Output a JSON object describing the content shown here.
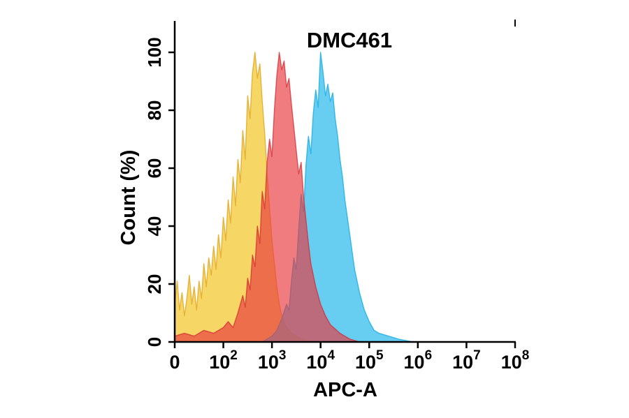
{
  "title": "DMC461",
  "axes": {
    "x_label": "APC-A",
    "y_label": "Count (%)",
    "x_ticks": [
      {
        "t": "0"
      },
      {
        "t": "10",
        "e": "2"
      },
      {
        "t": "10",
        "e": "3"
      },
      {
        "t": "10",
        "e": "4"
      },
      {
        "t": "10",
        "e": "5"
      },
      {
        "t": "10",
        "e": "6"
      },
      {
        "t": "10",
        "e": "7"
      },
      {
        "t": "10",
        "e": "8"
      }
    ],
    "y_ticks": [
      0,
      20,
      40,
      60,
      80,
      100
    ]
  },
  "chart_data": {
    "type": "area",
    "subtype": "flow-cytometry-histogram-overlay",
    "title": "DMC461",
    "xlabel": "APC-A",
    "ylabel": "Count (%)",
    "x_scale": "log decades: axis unit 0 = '0' tick, unit 1 = 1e2, unit 2 = 1e3, unit 3 = 1e4, unit 4 = 1e5, unit 5 = 1e6, unit 6 = 1e7, unit 7 = 1e8",
    "ylim": [
      0,
      100
    ],
    "grid": false,
    "legend": "none",
    "series": [
      {
        "name": "yellow-histogram",
        "fill": "#f6d45c",
        "stroke": "#e6b33a",
        "opacity": 0.95,
        "peak_x_unit": 1.65,
        "points": [
          [
            0,
            13
          ],
          [
            0.05,
            21
          ],
          [
            0.1,
            11
          ],
          [
            0.15,
            17
          ],
          [
            0.2,
            9
          ],
          [
            0.25,
            15
          ],
          [
            0.3,
            23
          ],
          [
            0.35,
            13
          ],
          [
            0.4,
            19
          ],
          [
            0.45,
            11
          ],
          [
            0.5,
            21
          ],
          [
            0.55,
            15
          ],
          [
            0.6,
            27
          ],
          [
            0.65,
            19
          ],
          [
            0.7,
            29
          ],
          [
            0.75,
            23
          ],
          [
            0.8,
            33
          ],
          [
            0.85,
            25
          ],
          [
            0.9,
            37
          ],
          [
            0.95,
            29
          ],
          [
            1.0,
            43
          ],
          [
            1.05,
            35
          ],
          [
            1.1,
            49
          ],
          [
            1.15,
            41
          ],
          [
            1.2,
            57
          ],
          [
            1.25,
            47
          ],
          [
            1.3,
            63
          ],
          [
            1.35,
            55
          ],
          [
            1.4,
            73
          ],
          [
            1.45,
            63
          ],
          [
            1.5,
            85
          ],
          [
            1.55,
            77
          ],
          [
            1.6,
            93
          ],
          [
            1.65,
            100
          ],
          [
            1.7,
            91
          ],
          [
            1.75,
            96
          ],
          [
            1.8,
            83
          ],
          [
            1.85,
            72
          ],
          [
            1.9,
            58
          ],
          [
            1.95,
            46
          ],
          [
            2.0,
            35
          ],
          [
            2.05,
            27
          ],
          [
            2.1,
            19
          ],
          [
            2.15,
            13
          ],
          [
            2.2,
            9
          ],
          [
            2.3,
            5
          ],
          [
            2.4,
            3
          ],
          [
            2.5,
            2
          ],
          [
            2.6,
            1
          ],
          [
            2.8,
            0
          ]
        ]
      },
      {
        "name": "blue-histogram",
        "fill": "#41c0ee",
        "stroke": "#27b2e6",
        "opacity": 0.8,
        "peak_x_unit": 3.0,
        "points": [
          [
            1.8,
            0
          ],
          [
            1.9,
            1
          ],
          [
            2.0,
            2
          ],
          [
            2.1,
            4
          ],
          [
            2.2,
            8
          ],
          [
            2.3,
            13
          ],
          [
            2.35,
            11
          ],
          [
            2.4,
            21
          ],
          [
            2.45,
            29
          ],
          [
            2.5,
            25
          ],
          [
            2.55,
            39
          ],
          [
            2.6,
            51
          ],
          [
            2.65,
            45
          ],
          [
            2.7,
            61
          ],
          [
            2.75,
            71
          ],
          [
            2.8,
            65
          ],
          [
            2.85,
            79
          ],
          [
            2.9,
            87
          ],
          [
            2.95,
            81
          ],
          [
            3.0,
            100
          ],
          [
            3.05,
            93
          ],
          [
            3.1,
            85
          ],
          [
            3.15,
            89
          ],
          [
            3.2,
            83
          ],
          [
            3.25,
            86
          ],
          [
            3.3,
            77
          ],
          [
            3.35,
            71
          ],
          [
            3.4,
            63
          ],
          [
            3.45,
            57
          ],
          [
            3.5,
            49
          ],
          [
            3.55,
            43
          ],
          [
            3.6,
            37
          ],
          [
            3.65,
            31
          ],
          [
            3.7,
            25
          ],
          [
            3.75,
            21
          ],
          [
            3.8,
            17
          ],
          [
            3.9,
            11
          ],
          [
            4.0,
            7
          ],
          [
            4.1,
            4
          ],
          [
            4.2,
            3
          ],
          [
            4.4,
            2
          ],
          [
            4.6,
            1
          ],
          [
            4.9,
            0
          ]
        ]
      },
      {
        "name": "red-histogram",
        "fill": "#e8353c",
        "stroke": "#d42930",
        "opacity": 0.65,
        "peak_x_unit": 2.15,
        "points": [
          [
            0,
            2
          ],
          [
            0.2,
            3
          ],
          [
            0.4,
            2
          ],
          [
            0.6,
            4
          ],
          [
            0.8,
            3
          ],
          [
            1.0,
            5
          ],
          [
            1.1,
            7
          ],
          [
            1.2,
            5
          ],
          [
            1.3,
            10
          ],
          [
            1.4,
            16
          ],
          [
            1.45,
            12
          ],
          [
            1.5,
            22
          ],
          [
            1.55,
            18
          ],
          [
            1.6,
            30
          ],
          [
            1.65,
            26
          ],
          [
            1.7,
            40
          ],
          [
            1.75,
            34
          ],
          [
            1.8,
            52
          ],
          [
            1.85,
            46
          ],
          [
            1.9,
            62
          ],
          [
            1.95,
            70
          ],
          [
            2.0,
            64
          ],
          [
            2.05,
            80
          ],
          [
            2.1,
            92
          ],
          [
            2.15,
            100
          ],
          [
            2.2,
            94
          ],
          [
            2.25,
            97
          ],
          [
            2.3,
            88
          ],
          [
            2.35,
            91
          ],
          [
            2.4,
            82
          ],
          [
            2.45,
            74
          ],
          [
            2.5,
            66
          ],
          [
            2.55,
            58
          ],
          [
            2.6,
            62
          ],
          [
            2.65,
            50
          ],
          [
            2.7,
            42
          ],
          [
            2.75,
            34
          ],
          [
            2.8,
            27
          ],
          [
            2.9,
            19
          ],
          [
            3.0,
            13
          ],
          [
            3.1,
            9
          ],
          [
            3.2,
            6
          ],
          [
            3.4,
            3
          ],
          [
            3.6,
            1
          ],
          [
            3.8,
            0
          ]
        ]
      }
    ]
  }
}
